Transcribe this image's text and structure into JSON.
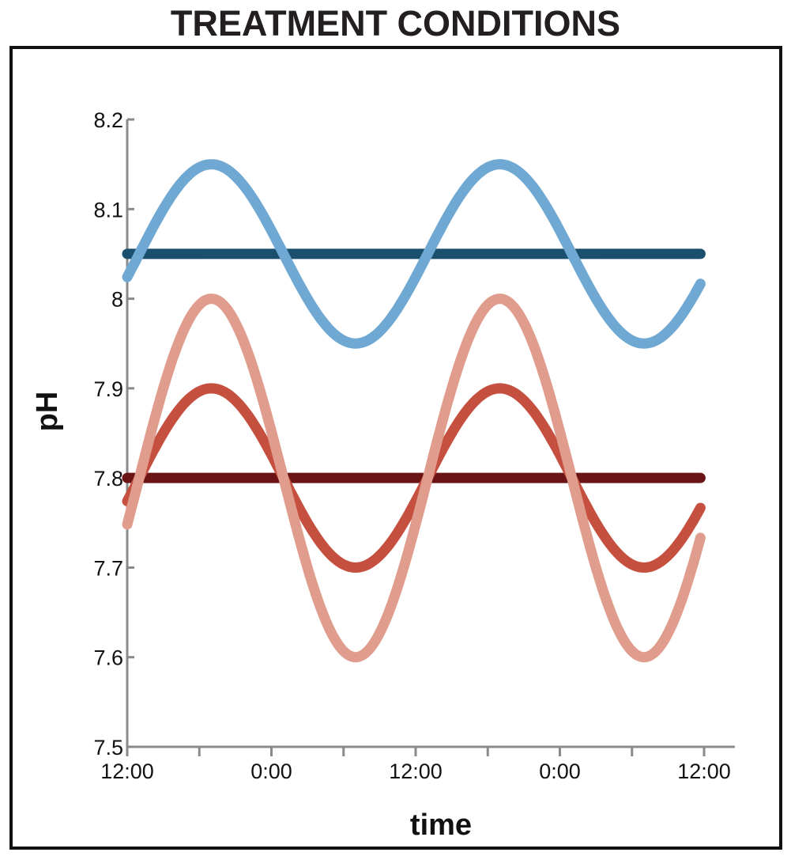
{
  "title": "TREATMENT CONDITIONS",
  "chart_data": {
    "type": "line",
    "title": "TREATMENT CONDITIONS",
    "xlabel": "time",
    "ylabel": "pH",
    "xlim": [
      0,
      48
    ],
    "ylim": [
      7.5,
      8.2
    ],
    "x_tick_labels": [
      "12:00",
      "0:00",
      "12:00",
      "0:00",
      "12:00"
    ],
    "x_tick_values": [
      0,
      12,
      24,
      36,
      48
    ],
    "x_minor_tick_values": [
      6,
      18,
      30,
      42
    ],
    "y_tick_labels": [
      "7.5",
      "7.6",
      "7.7",
      "7.8",
      "7.9",
      "8",
      "8.1",
      "8.2"
    ],
    "y_tick_values": [
      7.5,
      7.6,
      7.7,
      7.8,
      7.9,
      8.0,
      8.1,
      8.2
    ],
    "grid": false,
    "legend": "none",
    "series": [
      {
        "color": "#1b4f6e",
        "kind": "constant",
        "x_range": [
          0,
          47.7
        ],
        "value": 8.05
      },
      {
        "color": "#6fa8d2",
        "kind": "cyclic",
        "x_range": [
          0,
          47.7
        ],
        "mean": 8.05,
        "amplitude": 0.1,
        "period_hours": 24,
        "peaks_at": [
          7,
          31
        ],
        "troughs_at": [
          19,
          43
        ]
      },
      {
        "color": "#6b1416",
        "kind": "constant",
        "x_range": [
          0,
          47.7
        ],
        "value": 7.8
      },
      {
        "color": "#c55040",
        "kind": "cyclic",
        "x_range": [
          0,
          47.7
        ],
        "mean": 7.8,
        "amplitude": 0.1,
        "period_hours": 24,
        "peaks_at": [
          7,
          31
        ],
        "troughs_at": [
          19,
          43
        ]
      },
      {
        "color": "#e09c8c",
        "kind": "cyclic",
        "x_range": [
          0,
          47.7
        ],
        "mean": 7.8,
        "amplitude": 0.2,
        "period_hours": 24,
        "peaks_at": [
          7,
          31
        ],
        "troughs_at": [
          19,
          43
        ]
      }
    ]
  }
}
